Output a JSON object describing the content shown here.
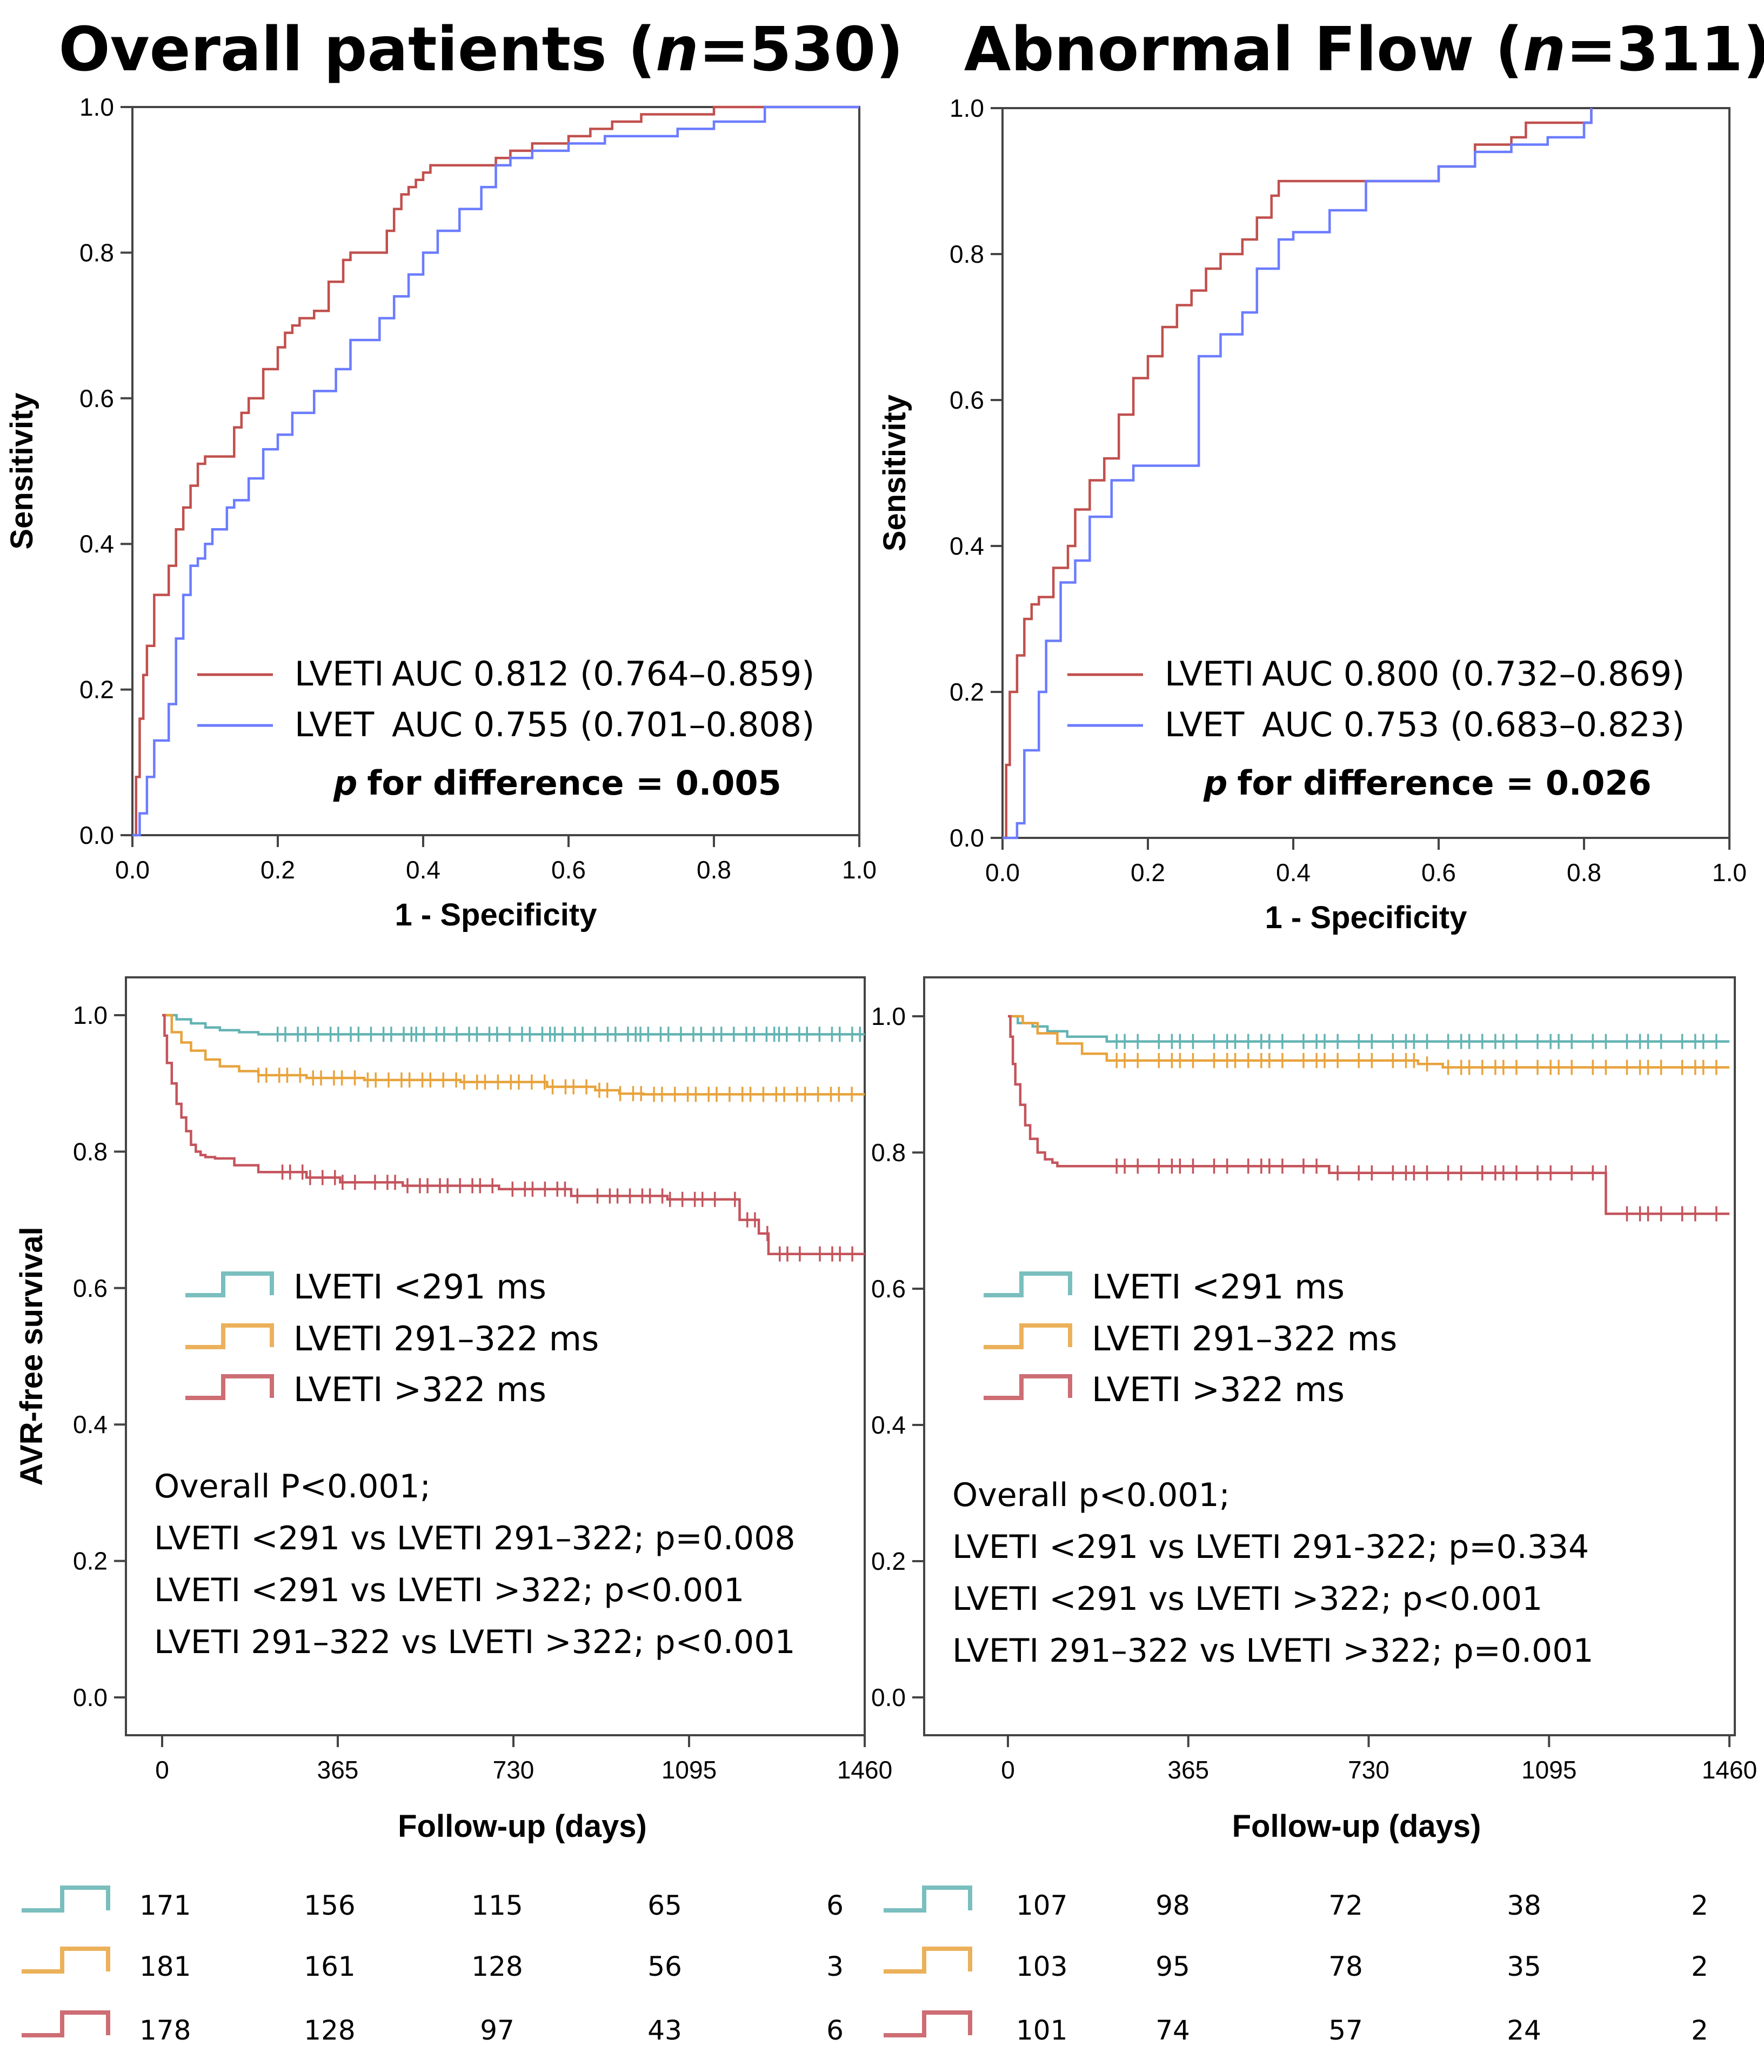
{
  "colors": {
    "red": "#c0504d",
    "blue": "#6b7cff",
    "teal": "#63b3b3",
    "orange": "#e8a33d",
    "kmred": "#c4545c"
  },
  "chart_data": [
    {
      "id": "roc_overall",
      "type": "line",
      "title": "Overall patients (n=530)",
      "title_parts": {
        "pre": "Overall patients (",
        "n": "n",
        "post": "=530)"
      },
      "xlabel": "1 - Specificity",
      "ylabel": "Sensitivity",
      "xlim": [
        0,
        1
      ],
      "ylim": [
        0,
        1
      ],
      "xticks": [
        "0.0",
        "0.2",
        "0.4",
        "0.6",
        "0.8",
        "1.0"
      ],
      "yticks": [
        "0.0",
        "0.2",
        "0.4",
        "0.6",
        "0.8",
        "1.0"
      ],
      "series": [
        {
          "name": "LVETI",
          "auc_label": "AUC 0.812 (0.764–0.859)",
          "color": "red",
          "x": [
            0,
            0.005,
            0.01,
            0.015,
            0.02,
            0.03,
            0.03,
            0.05,
            0.05,
            0.06,
            0.07,
            0.08,
            0.09,
            0.1,
            0.11,
            0.14,
            0.15,
            0.16,
            0.18,
            0.2,
            0.21,
            0.22,
            0.23,
            0.25,
            0.27,
            0.29,
            0.3,
            0.32,
            0.35,
            0.36,
            0.37,
            0.38,
            0.39,
            0.4,
            0.41,
            0.42,
            0.45,
            0.5,
            0.52,
            0.55,
            0.6,
            0.63,
            0.66,
            0.68,
            0.7,
            0.8,
            1.0
          ],
          "y": [
            0,
            0.08,
            0.16,
            0.22,
            0.26,
            0.28,
            0.33,
            0.33,
            0.37,
            0.42,
            0.45,
            0.48,
            0.51,
            0.52,
            0.52,
            0.56,
            0.58,
            0.6,
            0.64,
            0.67,
            0.69,
            0.7,
            0.71,
            0.72,
            0.76,
            0.79,
            0.8,
            0.8,
            0.83,
            0.86,
            0.88,
            0.89,
            0.9,
            0.91,
            0.92,
            0.92,
            0.92,
            0.93,
            0.94,
            0.95,
            0.96,
            0.97,
            0.98,
            0.98,
            0.99,
            1.0,
            1.0
          ]
        },
        {
          "name": "LVET",
          "auc_label": "AUC 0.755 (0.701–0.808)",
          "color": "blue",
          "x": [
            0,
            0.01,
            0.02,
            0.03,
            0.05,
            0.06,
            0.07,
            0.08,
            0.09,
            0.1,
            0.11,
            0.13,
            0.14,
            0.15,
            0.16,
            0.18,
            0.2,
            0.22,
            0.25,
            0.28,
            0.3,
            0.32,
            0.34,
            0.36,
            0.38,
            0.4,
            0.42,
            0.45,
            0.48,
            0.5,
            0.52,
            0.55,
            0.6,
            0.65,
            0.7,
            0.75,
            0.8,
            0.85,
            0.87,
            1.0
          ],
          "y": [
            0,
            0.03,
            0.08,
            0.13,
            0.18,
            0.27,
            0.33,
            0.37,
            0.38,
            0.4,
            0.42,
            0.45,
            0.46,
            0.46,
            0.49,
            0.53,
            0.55,
            0.58,
            0.61,
            0.64,
            0.68,
            0.68,
            0.71,
            0.74,
            0.77,
            0.8,
            0.83,
            0.86,
            0.89,
            0.92,
            0.93,
            0.94,
            0.95,
            0.96,
            0.96,
            0.97,
            0.98,
            0.98,
            1.0,
            1.0
          ]
        }
      ],
      "annotation": {
        "p": "p",
        "rest": "for difference = 0.005"
      }
    },
    {
      "id": "roc_abnormal",
      "type": "line",
      "title": "Abnormal Flow (n=311)",
      "title_parts": {
        "pre": "Abnormal Flow (",
        "n": "n",
        "post": "=311)"
      },
      "xlabel": "1 - Specificity",
      "ylabel": "Sensitivity",
      "xlim": [
        0,
        1
      ],
      "ylim": [
        0,
        1
      ],
      "xticks": [
        "0.0",
        "0.2",
        "0.4",
        "0.6",
        "0.8",
        "1.0"
      ],
      "yticks": [
        "0.0",
        "0.2",
        "0.4",
        "0.6",
        "0.8",
        "1.0"
      ],
      "series": [
        {
          "name": "LVETI",
          "auc_label": "AUC 0.800 (0.732–0.869)",
          "color": "red",
          "x": [
            0,
            0.005,
            0.01,
            0.02,
            0.03,
            0.04,
            0.05,
            0.07,
            0.09,
            0.1,
            0.12,
            0.14,
            0.16,
            0.18,
            0.2,
            0.22,
            0.24,
            0.26,
            0.28,
            0.3,
            0.33,
            0.35,
            0.37,
            0.38,
            0.4,
            0.45,
            0.5,
            0.55,
            0.6,
            0.65,
            0.7,
            0.72,
            0.8,
            0.81
          ],
          "y": [
            0,
            0.1,
            0.2,
            0.25,
            0.3,
            0.32,
            0.33,
            0.37,
            0.4,
            0.45,
            0.49,
            0.52,
            0.58,
            0.63,
            0.66,
            0.7,
            0.73,
            0.75,
            0.78,
            0.8,
            0.82,
            0.85,
            0.88,
            0.9,
            0.9,
            0.9,
            0.9,
            0.9,
            0.92,
            0.95,
            0.96,
            0.98,
            0.98,
            1.0
          ]
        },
        {
          "name": "LVET",
          "auc_label": "AUC 0.753 (0.683–0.823)",
          "color": "blue",
          "x": [
            0,
            0.02,
            0.03,
            0.05,
            0.06,
            0.08,
            0.1,
            0.12,
            0.15,
            0.18,
            0.2,
            0.25,
            0.27,
            0.3,
            0.33,
            0.35,
            0.38,
            0.4,
            0.45,
            0.5,
            0.52,
            0.55,
            0.6,
            0.65,
            0.7,
            0.75,
            0.8,
            0.81
          ],
          "y": [
            0,
            0.02,
            0.12,
            0.2,
            0.27,
            0.35,
            0.38,
            0.44,
            0.49,
            0.51,
            0.51,
            0.51,
            0.66,
            0.69,
            0.72,
            0.78,
            0.82,
            0.83,
            0.86,
            0.9,
            0.9,
            0.9,
            0.92,
            0.94,
            0.95,
            0.96,
            0.98,
            1.0
          ]
        }
      ],
      "annotation": {
        "p": "p",
        "rest": "for difference = 0.026"
      }
    },
    {
      "id": "km_overall",
      "type": "line",
      "title": "",
      "xlabel": "Follow-up (days)",
      "ylabel": "AVR-free survival",
      "xlim": [
        0,
        1460
      ],
      "ylim": [
        0,
        1
      ],
      "xticks": [
        "0",
        "365",
        "730",
        "1095",
        "1460"
      ],
      "yticks": [
        "0.0",
        "0.2",
        "0.4",
        "0.6",
        "0.8",
        "1.0"
      ],
      "series": [
        {
          "name": "LVETI <291 ms",
          "color": "teal",
          "x": [
            0,
            30,
            60,
            90,
            120,
            160,
            200,
            1460
          ],
          "y": [
            1.0,
            0.994,
            0.988,
            0.982,
            0.978,
            0.975,
            0.972,
            0.972
          ],
          "censor_range": [
            240,
            1460
          ],
          "censor_n": 60
        },
        {
          "name": "LVETI 291–322 ms",
          "color": "orange",
          "x": [
            0,
            20,
            40,
            60,
            90,
            120,
            160,
            200,
            300,
            420,
            620,
            800,
            900,
            950,
            1000,
            1460
          ],
          "y": [
            1.0,
            0.975,
            0.96,
            0.948,
            0.935,
            0.925,
            0.918,
            0.912,
            0.908,
            0.905,
            0.902,
            0.895,
            0.89,
            0.885,
            0.884,
            0.884
          ],
          "censor_range": [
            200,
            1460
          ],
          "censor_n": 55
        },
        {
          "name": "LVETI >322 ms",
          "color": "kmred",
          "x": [
            0,
            5,
            10,
            20,
            30,
            40,
            50,
            60,
            70,
            80,
            90,
            110,
            150,
            200,
            300,
            370,
            500,
            700,
            850,
            1050,
            1150,
            1200,
            1240,
            1260,
            1460
          ],
          "y": [
            1.0,
            0.97,
            0.93,
            0.9,
            0.87,
            0.85,
            0.83,
            0.81,
            0.8,
            0.795,
            0.792,
            0.79,
            0.78,
            0.77,
            0.762,
            0.755,
            0.75,
            0.745,
            0.735,
            0.73,
            0.73,
            0.7,
            0.68,
            0.65,
            0.65
          ],
          "censor_range": [
            250,
            1460
          ],
          "censor_n": 50
        }
      ],
      "stats": [
        "Overall P<0.001;",
        "LVETI <291 vs LVETI 291–322; p=0.008",
        "LVETI <291 vs LVETI >322; p<0.001",
        "LVETI 291–322 vs LVETI >322; p<0.001"
      ],
      "risk_table": [
        {
          "group": "teal",
          "values": [
            "171",
            "156",
            "115",
            "65",
            "6"
          ]
        },
        {
          "group": "orange",
          "values": [
            "181",
            "161",
            "128",
            "56",
            "3"
          ]
        },
        {
          "group": "kmred",
          "values": [
            "178",
            "128",
            "97",
            "43",
            "6"
          ]
        }
      ]
    },
    {
      "id": "km_abnormal",
      "type": "line",
      "title": "",
      "xlabel": "Follow-up (days)",
      "ylabel": "",
      "xlim": [
        0,
        1460
      ],
      "ylim": [
        0,
        1
      ],
      "xticks": [
        "0",
        "365",
        "730",
        "1095",
        "1460"
      ],
      "yticks": [
        "0.0",
        "0.2",
        "0.4",
        "0.6",
        "0.8",
        "1.0"
      ],
      "series": [
        {
          "name": "LVETI <291 ms",
          "color": "teal",
          "x": [
            0,
            20,
            50,
            80,
            120,
            200,
            1460
          ],
          "y": [
            1.0,
            0.99,
            0.985,
            0.978,
            0.97,
            0.963,
            0.963
          ],
          "censor_range": [
            220,
            1460
          ],
          "censor_n": 45
        },
        {
          "name": "LVETI 291–322 ms",
          "color": "orange",
          "x": [
            0,
            30,
            60,
            100,
            150,
            200,
            400,
            600,
            800,
            830,
            880,
            1460
          ],
          "y": [
            1.0,
            0.99,
            0.975,
            0.96,
            0.945,
            0.935,
            0.935,
            0.935,
            0.935,
            0.93,
            0.925,
            0.925
          ],
          "censor_range": [
            220,
            1460
          ],
          "censor_n": 45
        },
        {
          "name": "LVETI >322 ms",
          "color": "kmred",
          "x": [
            0,
            5,
            10,
            15,
            25,
            35,
            45,
            60,
            75,
            90,
            100,
            200,
            400,
            650,
            1000,
            1200,
            1210,
            1460
          ],
          "y": [
            1.0,
            0.97,
            0.93,
            0.9,
            0.87,
            0.84,
            0.82,
            0.8,
            0.79,
            0.785,
            0.78,
            0.78,
            0.78,
            0.77,
            0.77,
            0.77,
            0.71,
            0.71
          ],
          "censor_range": [
            220,
            1460
          ],
          "censor_n": 40
        }
      ],
      "stats": [
        "Overall p<0.001;",
        "LVETI <291 vs LVETI 291-322; p=0.334",
        "LVETI <291 vs LVETI >322; p<0.001",
        "LVETI 291–322 vs LVETI >322; p=0.001"
      ],
      "risk_table": [
        {
          "group": "teal",
          "values": [
            "107",
            "98",
            "72",
            "38",
            "2"
          ]
        },
        {
          "group": "orange",
          "values": [
            "103",
            "95",
            "78",
            "35",
            "2"
          ]
        },
        {
          "group": "kmred",
          "values": [
            "101",
            "74",
            "57",
            "24",
            "2"
          ]
        }
      ]
    }
  ],
  "km_legend": [
    "LVETI <291 ms",
    "LVETI 291–322 ms",
    "LVETI >322 ms"
  ]
}
